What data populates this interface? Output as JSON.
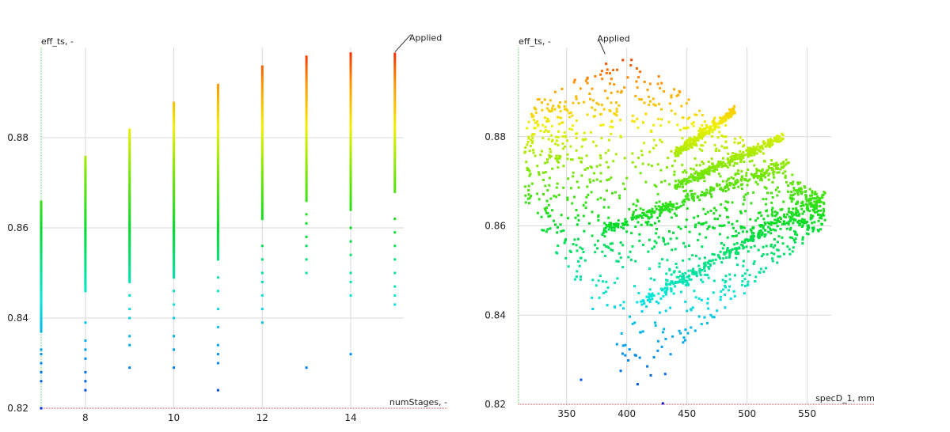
{
  "chart_data": [
    {
      "type": "scatter",
      "ylabel": "eff_ts, -",
      "xlabel": "numStages, -",
      "xlim": [
        7,
        15.2
      ],
      "ylim": [
        0.82,
        0.9
      ],
      "xticks": [
        8,
        10,
        12,
        14
      ],
      "yticks": [
        0.82,
        0.84,
        0.86,
        0.88
      ],
      "grid": true,
      "annotation": {
        "text": "Applied",
        "x": 15,
        "y": 0.899
      },
      "color_scale": "eff_ts (blue = low, red = high)",
      "columns": [
        {
          "x": 7,
          "ymin": 0.82,
          "ymax": 0.866,
          "dense_min": 0.837,
          "outliers": [
            0.82,
            0.826,
            0.828,
            0.83,
            0.832,
            0.833
          ]
        },
        {
          "x": 8,
          "ymin": 0.824,
          "ymax": 0.876,
          "dense_min": 0.846,
          "outliers": [
            0.824,
            0.826,
            0.828,
            0.831,
            0.833,
            0.835,
            0.839
          ]
        },
        {
          "x": 9,
          "ymin": 0.829,
          "ymax": 0.882,
          "dense_min": 0.848,
          "outliers": [
            0.829,
            0.834,
            0.836,
            0.84,
            0.842,
            0.845
          ]
        },
        {
          "x": 10,
          "ymin": 0.829,
          "ymax": 0.888,
          "dense_min": 0.849,
          "outliers": [
            0.829,
            0.833,
            0.836,
            0.84,
            0.843,
            0.846
          ]
        },
        {
          "x": 11,
          "ymin": 0.824,
          "ymax": 0.892,
          "dense_min": 0.853,
          "outliers": [
            0.824,
            0.83,
            0.832,
            0.834,
            0.838,
            0.842,
            0.846,
            0.849
          ]
        },
        {
          "x": 12,
          "ymin": 0.839,
          "ymax": 0.896,
          "dense_min": 0.862,
          "outliers": [
            0.839,
            0.842,
            0.845,
            0.848,
            0.85,
            0.853,
            0.856
          ]
        },
        {
          "x": 13,
          "ymin": 0.829,
          "ymax": 0.898,
          "dense_min": 0.866,
          "outliers": [
            0.829,
            0.85,
            0.853,
            0.856,
            0.858,
            0.861,
            0.863
          ]
        },
        {
          "x": 14,
          "ymin": 0.832,
          "ymax": 0.899,
          "dense_min": 0.864,
          "outliers": [
            0.832,
            0.845,
            0.848,
            0.85,
            0.854,
            0.857,
            0.86
          ]
        },
        {
          "x": 15,
          "ymin": 0.843,
          "ymax": 0.899,
          "dense_min": 0.868,
          "outliers": [
            0.843,
            0.845,
            0.847,
            0.85,
            0.853,
            0.856,
            0.859,
            0.862
          ]
        }
      ]
    },
    {
      "type": "scatter",
      "ylabel": "eff_ts, -",
      "xlabel": "specD_1, mm",
      "xlim": [
        310,
        570
      ],
      "ylim": [
        0.82,
        0.9
      ],
      "xticks": [
        350,
        400,
        450,
        500,
        550
      ],
      "yticks": [
        0.82,
        0.84,
        0.86,
        0.88
      ],
      "grid": true,
      "annotation": {
        "text": "Applied",
        "x": 382,
        "y": 0.8985
      },
      "color_scale": "eff_ts (blue = low, red = high)",
      "bands": [
        {
          "x_start": 440,
          "y_start": 0.876,
          "x_end": 490,
          "y_end": 0.886,
          "spread": 0.0018
        },
        {
          "x_start": 440,
          "y_start": 0.869,
          "x_end": 530,
          "y_end": 0.88,
          "spread": 0.0018
        },
        {
          "x_start": 380,
          "y_start": 0.859,
          "x_end": 535,
          "y_end": 0.874,
          "spread": 0.0022
        },
        {
          "x_start": 410,
          "y_start": 0.842,
          "x_end": 565,
          "y_end": 0.867,
          "spread": 0.0025
        }
      ],
      "cloud": {
        "x_range": [
          315,
          565
        ],
        "y_range": [
          0.825,
          0.899
        ],
        "shape": "upper-left to lower-center envelope"
      }
    }
  ]
}
